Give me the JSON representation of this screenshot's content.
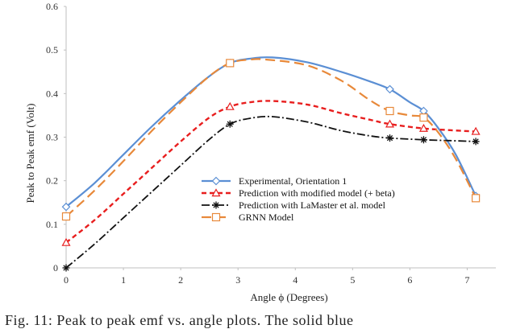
{
  "caption": "Fig. 11: Peak to peak emf vs. angle plots. The solid blue",
  "chart_data": {
    "type": "line",
    "title": "",
    "xlabel": "Angle ϕ (Degrees)",
    "ylabel": "Peak to Peak emf (Volt)",
    "xlim": [
      0,
      7.5
    ],
    "ylim": [
      0,
      0.6
    ],
    "xticks": [
      "0",
      "1",
      "2",
      "3",
      "4",
      "5",
      "6",
      "7"
    ],
    "yticks": [
      "0",
      "0.1",
      "0.2",
      "0.3",
      "0.4",
      "0.5",
      "0.6"
    ],
    "grid": false,
    "legend_position": "center-right",
    "series": [
      {
        "name": "Experimental, Orientation 1",
        "color": "#5b8fd4",
        "dash": "solid",
        "marker": "diamond",
        "points": [
          [
            0,
            0.14
          ],
          [
            2.86,
            0.47
          ],
          [
            5.65,
            0.41
          ],
          [
            6.24,
            0.36
          ],
          [
            7.15,
            0.165
          ]
        ],
        "curve": [
          [
            0,
            0.14
          ],
          [
            0.5,
            0.195
          ],
          [
            1,
            0.26
          ],
          [
            1.5,
            0.325
          ],
          [
            2,
            0.385
          ],
          [
            2.5,
            0.44
          ],
          [
            2.86,
            0.47
          ],
          [
            3.2,
            0.48
          ],
          [
            3.6,
            0.483
          ],
          [
            4.2,
            0.472
          ],
          [
            4.8,
            0.45
          ],
          [
            5.3,
            0.428
          ],
          [
            5.65,
            0.41
          ],
          [
            6.0,
            0.38
          ],
          [
            6.24,
            0.36
          ],
          [
            6.5,
            0.32
          ],
          [
            6.8,
            0.26
          ],
          [
            7.15,
            0.165
          ]
        ]
      },
      {
        "name": "Prediction with  modified model (+ beta)",
        "color": "#e81e1e",
        "dash": "6 4",
        "marker": "triangle",
        "points": [
          [
            0,
            0.058
          ],
          [
            2.86,
            0.37
          ],
          [
            5.65,
            0.33
          ],
          [
            6.24,
            0.32
          ],
          [
            7.15,
            0.313
          ]
        ],
        "curve": [
          [
            0,
            0.058
          ],
          [
            0.5,
            0.11
          ],
          [
            1,
            0.17
          ],
          [
            1.5,
            0.23
          ],
          [
            2,
            0.29
          ],
          [
            2.5,
            0.345
          ],
          [
            2.86,
            0.37
          ],
          [
            3.2,
            0.38
          ],
          [
            3.6,
            0.383
          ],
          [
            4.2,
            0.375
          ],
          [
            4.8,
            0.355
          ],
          [
            5.3,
            0.34
          ],
          [
            5.65,
            0.33
          ],
          [
            6.24,
            0.32
          ],
          [
            6.7,
            0.316
          ],
          [
            7.15,
            0.313
          ]
        ]
      },
      {
        "name": "Prediction with LaMaster et al. model",
        "color": "#111111",
        "dash": "10 3 2 3",
        "marker": "asterisk",
        "points": [
          [
            0,
            0.0
          ],
          [
            2.86,
            0.33
          ],
          [
            5.65,
            0.298
          ],
          [
            6.24,
            0.294
          ],
          [
            7.15,
            0.29
          ]
        ],
        "curve": [
          [
            0,
            0.0
          ],
          [
            0.5,
            0.055
          ],
          [
            1,
            0.115
          ],
          [
            1.5,
            0.175
          ],
          [
            2,
            0.235
          ],
          [
            2.5,
            0.295
          ],
          [
            2.86,
            0.33
          ],
          [
            3.2,
            0.343
          ],
          [
            3.6,
            0.347
          ],
          [
            4.2,
            0.335
          ],
          [
            4.8,
            0.315
          ],
          [
            5.3,
            0.303
          ],
          [
            5.65,
            0.298
          ],
          [
            6.24,
            0.294
          ],
          [
            6.7,
            0.292
          ],
          [
            7.15,
            0.29
          ]
        ]
      },
      {
        "name": "GRNN Model",
        "color": "#e8893a",
        "dash": "12 6",
        "marker": "square",
        "points": [
          [
            0,
            0.118
          ],
          [
            2.86,
            0.47
          ],
          [
            5.65,
            0.36
          ],
          [
            6.24,
            0.345
          ],
          [
            7.15,
            0.16
          ]
        ],
        "curve": [
          [
            0,
            0.118
          ],
          [
            0.5,
            0.178
          ],
          [
            1,
            0.245
          ],
          [
            1.5,
            0.315
          ],
          [
            2,
            0.38
          ],
          [
            2.5,
            0.44
          ],
          [
            2.86,
            0.47
          ],
          [
            3.2,
            0.478
          ],
          [
            3.5,
            0.478
          ],
          [
            4.2,
            0.465
          ],
          [
            4.8,
            0.43
          ],
          [
            5.3,
            0.385
          ],
          [
            5.65,
            0.36
          ],
          [
            6.0,
            0.35
          ],
          [
            6.24,
            0.345
          ],
          [
            6.5,
            0.31
          ],
          [
            6.8,
            0.25
          ],
          [
            7.15,
            0.16
          ]
        ]
      }
    ]
  }
}
